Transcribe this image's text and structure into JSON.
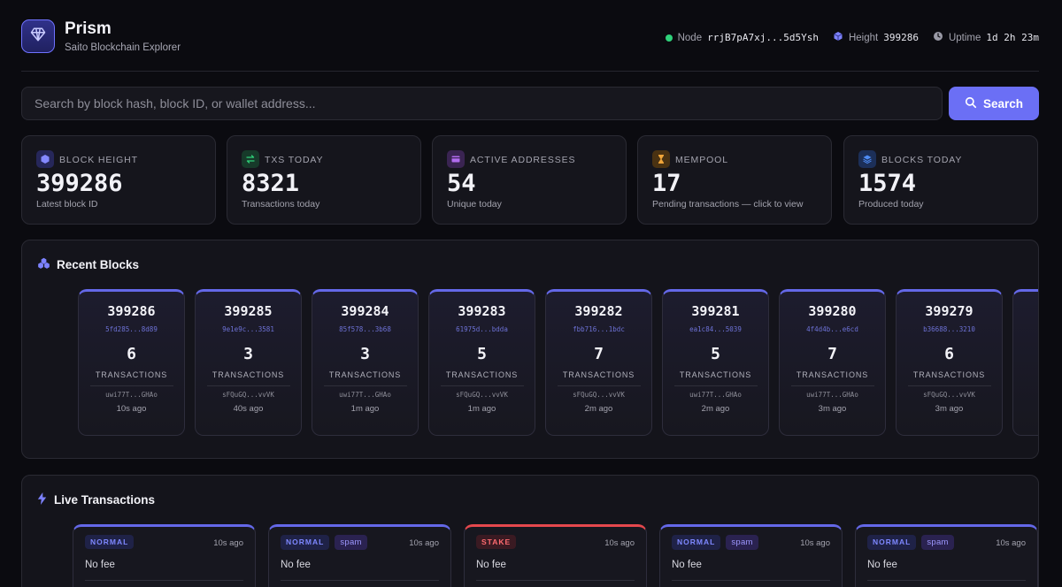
{
  "header": {
    "title": "Prism",
    "subtitle": "Saito Blockchain Explorer",
    "node_label": "Node",
    "node_value": "rrjB7pA7xj...5d5Ysh",
    "height_label": "Height",
    "height_value": "399286",
    "uptime_label": "Uptime",
    "uptime_value": "1d 2h 23m"
  },
  "search": {
    "placeholder": "Search by block hash, block ID, or wallet address...",
    "button_label": "Search"
  },
  "stats": [
    {
      "label": "BLOCK HEIGHT",
      "value": "399286",
      "sub": "Latest block ID",
      "icon": "cube-icon",
      "color": "#6b6ff5"
    },
    {
      "label": "TXS TODAY",
      "value": "8321",
      "sub": "Transactions today",
      "icon": "transfer-icon",
      "color": "#2fd27a"
    },
    {
      "label": "ACTIVE ADDRESSES",
      "value": "54",
      "sub": "Unique today",
      "icon": "wallet-icon",
      "color": "#b26cf0"
    },
    {
      "label": "MEMPOOL",
      "value": "17",
      "sub": "Pending transactions — click to view",
      "icon": "hourglass-icon",
      "color": "#f0a53a"
    },
    {
      "label": "BLOCKS TODAY",
      "value": "1574",
      "sub": "Produced today",
      "icon": "layers-icon",
      "color": "#4f8cf5"
    }
  ],
  "recent_blocks": {
    "title": "Recent Blocks",
    "tx_label": "TRANSACTIONS",
    "items": [
      {
        "id": "399286",
        "hash": "5fd285...8d89",
        "txs": "6",
        "creator": "uwi77T...GHAo",
        "time": "10s ago"
      },
      {
        "id": "399285",
        "hash": "9e1e9c...3581",
        "txs": "3",
        "creator": "sFQuGQ...vvVK",
        "time": "40s ago"
      },
      {
        "id": "399284",
        "hash": "85f578...3b68",
        "txs": "3",
        "creator": "uwi77T...GHAo",
        "time": "1m ago"
      },
      {
        "id": "399283",
        "hash": "61975d...bdda",
        "txs": "5",
        "creator": "sFQuGQ...vvVK",
        "time": "1m ago"
      },
      {
        "id": "399282",
        "hash": "fbb716...1bdc",
        "txs": "7",
        "creator": "sFQuGQ...vvVK",
        "time": "2m ago"
      },
      {
        "id": "399281",
        "hash": "ea1c84...5039",
        "txs": "5",
        "creator": "uwi77T...GHAo",
        "time": "2m ago"
      },
      {
        "id": "399280",
        "hash": "4f4d4b...e6cd",
        "txs": "7",
        "creator": "uwi77T...GHAo",
        "time": "3m ago"
      },
      {
        "id": "399279",
        "hash": "b36688...3210",
        "txs": "6",
        "creator": "sFQuGQ...vvVK",
        "time": "3m ago"
      }
    ]
  },
  "live_transactions": {
    "title": "Live Transactions",
    "items": [
      {
        "type": "NORMAL",
        "tags": [],
        "time": "10s ago",
        "fee": "No fee"
      },
      {
        "type": "NORMAL",
        "tags": [
          "spam"
        ],
        "time": "10s ago",
        "fee": "No fee"
      },
      {
        "type": "STAKE",
        "tags": [],
        "time": "10s ago",
        "fee": "No fee"
      },
      {
        "type": "NORMAL",
        "tags": [
          "spam"
        ],
        "time": "10s ago",
        "fee": "No fee"
      },
      {
        "type": "NORMAL",
        "tags": [
          "spam"
        ],
        "time": "10s ago",
        "fee": "No fee"
      }
    ]
  }
}
